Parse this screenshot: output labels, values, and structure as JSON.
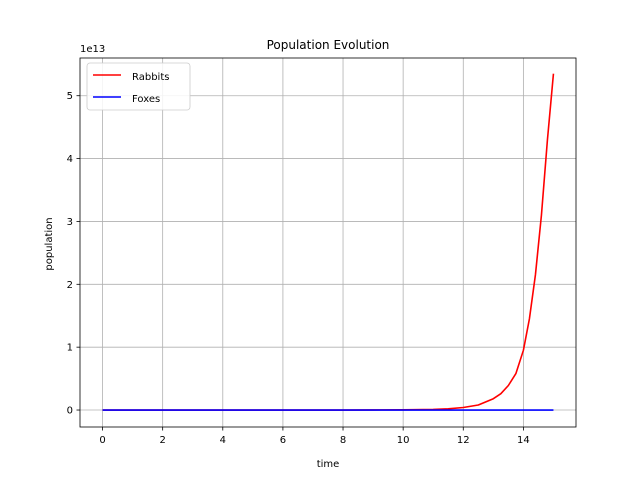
{
  "chart_data": {
    "type": "line",
    "title": "Population Evolution",
    "xlabel": "time",
    "ylabel": "population",
    "y_offset_label": "1e13",
    "xlim": [
      -0.75,
      15.75
    ],
    "ylim": [
      -0.27,
      5.6
    ],
    "y_scale_exponent": 13,
    "x_ticks": [
      0,
      2,
      4,
      6,
      8,
      10,
      12,
      14
    ],
    "y_ticks": [
      0,
      1,
      2,
      3,
      4,
      5
    ],
    "grid": true,
    "legend_position": "upper left",
    "series": [
      {
        "name": "Rabbits",
        "color": "#ff0000",
        "x": [
          0,
          1,
          2,
          3,
          4,
          5,
          6,
          7,
          8,
          9,
          10,
          11,
          11.5,
          12,
          12.5,
          13,
          13.25,
          13.5,
          13.75,
          14,
          14.2,
          14.4,
          14.6,
          14.8,
          15
        ],
        "y": [
          0,
          0,
          0,
          0,
          0,
          0,
          0,
          0,
          0,
          0.002,
          0.004,
          0.01,
          0.02,
          0.04,
          0.08,
          0.18,
          0.26,
          0.39,
          0.58,
          0.95,
          1.45,
          2.15,
          3.1,
          4.3,
          5.35
        ]
      },
      {
        "name": "Foxes",
        "color": "#0000ff",
        "x": [
          0,
          15
        ],
        "y": [
          0,
          0
        ]
      }
    ]
  }
}
